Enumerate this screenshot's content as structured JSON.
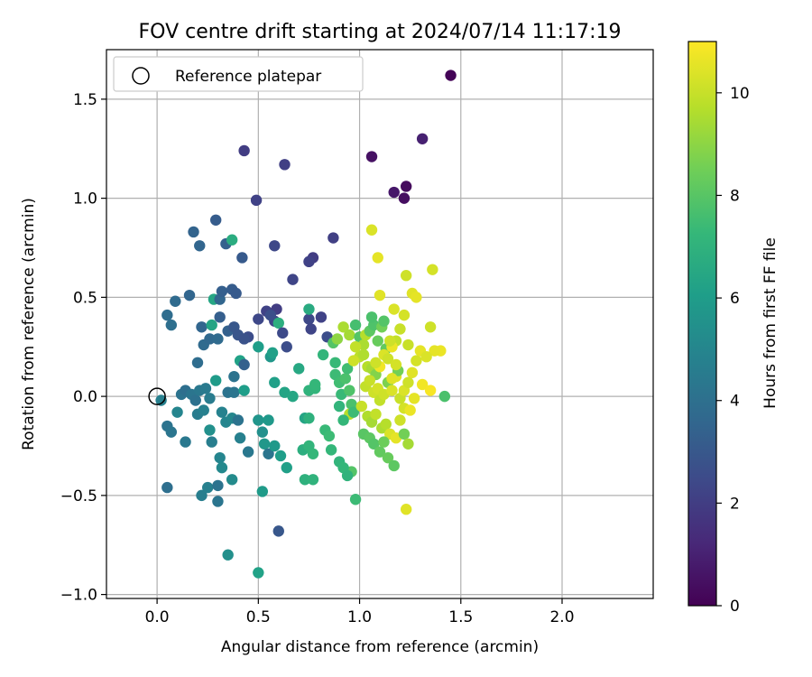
{
  "chart_data": {
    "type": "scatter",
    "title": "FOV centre drift starting at 2024/07/14 11:17:19",
    "xlabel": "Angular distance from reference (arcmin)",
    "ylabel": "Rotation from reference (arcmin)",
    "xlim": [
      -0.25,
      2.45
    ],
    "ylim": [
      -1.02,
      1.75
    ],
    "xticks": [
      0.0,
      0.5,
      1.0,
      1.5,
      2.0
    ],
    "xtick_labels": [
      "0.0",
      "0.5",
      "1.0",
      "1.5",
      "2.0"
    ],
    "yticks": [
      -1.0,
      -0.5,
      0.0,
      0.5,
      1.0,
      1.5
    ],
    "ytick_labels": [
      "−1.0",
      "−0.5",
      "0.0",
      "0.5",
      "1.0",
      "1.5"
    ],
    "grid": true,
    "legend": {
      "placement": "top-left",
      "entries": [
        "Reference platepar"
      ]
    },
    "reference_point": {
      "x": 0.0,
      "y": 0.0,
      "label": "Reference platepar"
    },
    "colorbar": {
      "label": "Hours from first FF file",
      "range": [
        0,
        11
      ],
      "ticks": [
        0,
        2,
        4,
        6,
        8,
        10
      ],
      "tick_labels": [
        "0",
        "2",
        "4",
        "6",
        "8",
        "10"
      ],
      "colormap": "viridis",
      "colors": [
        "#440154",
        "#482878",
        "#3e4989",
        "#31688e",
        "#26828e",
        "#1f9e89",
        "#35b779",
        "#6ece58",
        "#b5de2b",
        "#fde725"
      ]
    },
    "points": [
      [
        1.45,
        1.62,
        0.1
      ],
      [
        1.31,
        1.3,
        1.0
      ],
      [
        1.06,
        1.21,
        0.5
      ],
      [
        1.23,
        1.06,
        0.3
      ],
      [
        1.17,
        1.03,
        0.7
      ],
      [
        1.22,
        1.0,
        0.4
      ],
      [
        0.43,
        1.24,
        2.0
      ],
      [
        0.63,
        1.17,
        2.1
      ],
      [
        0.49,
        0.99,
        2.2
      ],
      [
        0.87,
        0.8,
        2.1
      ],
      [
        0.77,
        0.7,
        2.0
      ],
      [
        0.75,
        0.68,
        2.2
      ],
      [
        0.58,
        0.76,
        2.4
      ],
      [
        0.67,
        0.59,
        2.3
      ],
      [
        0.29,
        0.89,
        3.2
      ],
      [
        0.18,
        0.83,
        3.5
      ],
      [
        0.21,
        0.76,
        3.6
      ],
      [
        0.34,
        0.77,
        3.4
      ],
      [
        0.37,
        0.79,
        6.8
      ],
      [
        0.42,
        0.7,
        3.1
      ],
      [
        0.16,
        0.51,
        3.6
      ],
      [
        0.09,
        0.48,
        3.8
      ],
      [
        0.05,
        0.41,
        3.9
      ],
      [
        0.07,
        0.36,
        4.0
      ],
      [
        0.28,
        0.49,
        6.5
      ],
      [
        0.31,
        0.49,
        3.6
      ],
      [
        0.32,
        0.53,
        3.3
      ],
      [
        0.37,
        0.54,
        3.2
      ],
      [
        0.39,
        0.52,
        3.1
      ],
      [
        0.31,
        0.4,
        3.3
      ],
      [
        0.35,
        0.33,
        3.4
      ],
      [
        0.38,
        0.35,
        3.0
      ],
      [
        0.4,
        0.31,
        2.9
      ],
      [
        0.45,
        0.3,
        2.6
      ],
      [
        0.43,
        0.29,
        2.8
      ],
      [
        0.5,
        0.39,
        2.4
      ],
      [
        0.54,
        0.43,
        2.2
      ],
      [
        0.59,
        0.44,
        2.0
      ],
      [
        0.58,
        0.38,
        2.3
      ],
      [
        0.6,
        0.37,
        6.9
      ],
      [
        0.56,
        0.41,
        2.7
      ],
      [
        0.62,
        0.32,
        2.5
      ],
      [
        0.64,
        0.25,
        2.6
      ],
      [
        0.75,
        0.39,
        2.4
      ],
      [
        0.76,
        0.34,
        2.3
      ],
      [
        0.81,
        0.4,
        2.2
      ],
      [
        0.75,
        0.44,
        6.7
      ],
      [
        0.84,
        0.3,
        2.6
      ],
      [
        0.22,
        0.35,
        3.6
      ],
      [
        0.23,
        0.26,
        3.8
      ],
      [
        0.26,
        0.29,
        3.7
      ],
      [
        0.27,
        0.36,
        6.4
      ],
      [
        0.3,
        0.29,
        3.8
      ],
      [
        0.2,
        0.17,
        3.9
      ],
      [
        0.38,
        0.1,
        4.2
      ],
      [
        0.41,
        0.18,
        6.3
      ],
      [
        0.43,
        0.16,
        3.4
      ],
      [
        0.5,
        0.25,
        6.1
      ],
      [
        0.56,
        0.2,
        5.8
      ],
      [
        0.57,
        0.22,
        6.2
      ],
      [
        0.12,
        0.01,
        4.2
      ],
      [
        0.14,
        0.03,
        4.0
      ],
      [
        0.17,
        0.01,
        4.3
      ],
      [
        0.19,
        -0.02,
        4.1
      ],
      [
        0.21,
        0.03,
        4.4
      ],
      [
        0.24,
        0.04,
        4.5
      ],
      [
        0.26,
        -0.01,
        4.6
      ],
      [
        0.29,
        0.08,
        6.0
      ],
      [
        0.35,
        0.02,
        4.2
      ],
      [
        0.38,
        0.02,
        4.3
      ],
      [
        0.43,
        0.03,
        6.1
      ],
      [
        0.02,
        -0.02,
        4.8
      ],
      [
        0.1,
        -0.08,
        5.0
      ],
      [
        0.05,
        -0.15,
        4.2
      ],
      [
        0.07,
        -0.18,
        4.3
      ],
      [
        0.14,
        -0.23,
        4.4
      ],
      [
        0.2,
        -0.09,
        4.6
      ],
      [
        0.23,
        -0.07,
        4.8
      ],
      [
        0.26,
        -0.17,
        5.5
      ],
      [
        0.27,
        -0.23,
        4.7
      ],
      [
        0.32,
        -0.08,
        4.9
      ],
      [
        0.34,
        -0.13,
        5.0
      ],
      [
        0.37,
        -0.11,
        5.1
      ],
      [
        0.4,
        -0.12,
        4.2
      ],
      [
        0.41,
        -0.21,
        4.8
      ],
      [
        0.45,
        -0.28,
        4.4
      ],
      [
        0.5,
        -0.12,
        5.7
      ],
      [
        0.52,
        -0.18,
        5.5
      ],
      [
        0.53,
        -0.24,
        5.8
      ],
      [
        0.55,
        -0.29,
        4.3
      ],
      [
        0.58,
        -0.25,
        5.9
      ],
      [
        0.61,
        -0.3,
        6.1
      ],
      [
        0.64,
        -0.36,
        6.2
      ],
      [
        0.05,
        -0.46,
        4.0
      ],
      [
        0.22,
        -0.5,
        4.7
      ],
      [
        0.25,
        -0.46,
        4.8
      ],
      [
        0.3,
        -0.45,
        4.2
      ],
      [
        0.31,
        -0.31,
        5.0
      ],
      [
        0.32,
        -0.36,
        5.2
      ],
      [
        0.3,
        -0.53,
        4.3
      ],
      [
        0.37,
        -0.42,
        5.3
      ],
      [
        0.35,
        -0.8,
        5.5
      ],
      [
        0.52,
        -0.48,
        6.0
      ],
      [
        0.6,
        -0.68,
        3.0
      ],
      [
        0.5,
        -0.89,
        6.3
      ],
      [
        0.55,
        -0.12,
        5.9
      ],
      [
        0.58,
        0.07,
        6.2
      ],
      [
        0.63,
        0.02,
        6.4
      ],
      [
        0.67,
        0.0,
        6.5
      ],
      [
        0.7,
        0.14,
        6.6
      ],
      [
        0.73,
        -0.11,
        6.4
      ],
      [
        0.72,
        -0.27,
        6.9
      ],
      [
        0.73,
        -0.42,
        7.0
      ],
      [
        0.77,
        -0.42,
        7.1
      ],
      [
        0.75,
        -0.25,
        7.2
      ],
      [
        0.77,
        -0.29,
        7.3
      ],
      [
        0.75,
        0.03,
        7.1
      ],
      [
        0.78,
        0.04,
        7.2
      ],
      [
        0.78,
        0.06,
        7.3
      ],
      [
        0.75,
        -0.11,
        7.0
      ],
      [
        0.83,
        -0.17,
        7.4
      ],
      [
        0.85,
        -0.2,
        7.5
      ],
      [
        0.86,
        -0.27,
        7.3
      ],
      [
        0.82,
        0.21,
        7.2
      ],
      [
        0.87,
        0.27,
        8.0
      ],
      [
        0.89,
        0.29,
        9.1
      ],
      [
        0.88,
        0.17,
        7.4
      ],
      [
        0.88,
        0.11,
        7.5
      ],
      [
        0.9,
        0.07,
        7.6
      ],
      [
        0.91,
        0.01,
        7.4
      ],
      [
        0.93,
        0.09,
        7.8
      ],
      [
        0.94,
        0.14,
        7.6
      ],
      [
        0.95,
        0.03,
        7.9
      ],
      [
        0.96,
        -0.04,
        7.8
      ],
      [
        0.95,
        -0.09,
        9.8
      ],
      [
        0.97,
        -0.08,
        7.5
      ],
      [
        0.9,
        -0.05,
        7.2
      ],
      [
        0.92,
        -0.12,
        7.3
      ],
      [
        0.96,
        -0.38,
        8.0
      ],
      [
        0.98,
        -0.52,
        7.5
      ],
      [
        0.9,
        -0.33,
        7.2
      ],
      [
        0.92,
        -0.36,
        7.3
      ],
      [
        0.94,
        -0.4,
        7.1
      ],
      [
        0.92,
        0.35,
        9.6
      ],
      [
        0.95,
        0.31,
        9.5
      ],
      [
        0.98,
        0.36,
        7.7
      ],
      [
        1.0,
        0.3,
        8.0
      ],
      [
        1.02,
        0.26,
        9.6
      ],
      [
        1.03,
        0.31,
        9.8
      ],
      [
        1.05,
        0.33,
        8.2
      ],
      [
        1.07,
        0.36,
        7.9
      ],
      [
        1.06,
        0.4,
        7.8
      ],
      [
        1.09,
        0.28,
        8.4
      ],
      [
        1.11,
        0.35,
        8.6
      ],
      [
        1.12,
        0.38,
        8.0
      ],
      [
        1.13,
        0.24,
        8.3
      ],
      [
        1.0,
        0.2,
        9.9
      ],
      [
        1.02,
        0.21,
        9.7
      ],
      [
        1.04,
        0.15,
        9.8
      ],
      [
        1.06,
        0.14,
        9.5
      ],
      [
        1.08,
        0.11,
        8.9
      ],
      [
        1.03,
        0.05,
        10.0
      ],
      [
        1.05,
        0.08,
        10.1
      ],
      [
        1.07,
        0.02,
        10.2
      ],
      [
        1.09,
        0.04,
        10.3
      ],
      [
        1.1,
        -0.02,
        10.0
      ],
      [
        1.12,
        0.01,
        10.2
      ],
      [
        1.14,
        0.07,
        8.8
      ],
      [
        1.16,
        0.03,
        10.4
      ],
      [
        1.18,
        0.1,
        10.5
      ],
      [
        1.19,
        0.13,
        8.6
      ],
      [
        1.01,
        -0.05,
        10.1
      ],
      [
        1.04,
        -0.1,
        9.7
      ],
      [
        1.06,
        -0.13,
        9.5
      ],
      [
        1.08,
        -0.09,
        10.0
      ],
      [
        1.11,
        -0.16,
        9.6
      ],
      [
        1.13,
        -0.14,
        9.8
      ],
      [
        1.15,
        -0.19,
        10.4
      ],
      [
        1.18,
        -0.21,
        10.6
      ],
      [
        1.2,
        -0.12,
        10.2
      ],
      [
        1.02,
        -0.19,
        8.1
      ],
      [
        1.05,
        -0.21,
        8.2
      ],
      [
        1.07,
        -0.24,
        8.0
      ],
      [
        1.1,
        -0.28,
        8.3
      ],
      [
        1.12,
        -0.23,
        8.5
      ],
      [
        1.14,
        -0.31,
        8.4
      ],
      [
        1.17,
        -0.35,
        8.2
      ],
      [
        1.22,
        -0.19,
        8.6
      ],
      [
        1.24,
        -0.24,
        9.5
      ],
      [
        1.22,
        -0.06,
        10.3
      ],
      [
        1.25,
        -0.07,
        10.7
      ],
      [
        1.27,
        -0.01,
        10.6
      ],
      [
        1.2,
        -0.01,
        10.1
      ],
      [
        1.22,
        0.03,
        10.4
      ],
      [
        1.24,
        0.07,
        10.2
      ],
      [
        1.26,
        0.12,
        10.5
      ],
      [
        1.28,
        0.18,
        10.3
      ],
      [
        1.3,
        0.23,
        10.6
      ],
      [
        1.31,
        0.06,
        10.8
      ],
      [
        1.35,
        0.03,
        10.9
      ],
      [
        1.4,
        0.23,
        10.7
      ],
      [
        1.42,
        0.0,
        7.8
      ],
      [
        1.37,
        0.23,
        10.6
      ],
      [
        1.33,
        0.2,
        10.4
      ],
      [
        1.35,
        0.35,
        10.2
      ],
      [
        1.36,
        0.64,
        10.3
      ],
      [
        1.26,
        0.52,
        10.5
      ],
      [
        1.28,
        0.5,
        10.6
      ],
      [
        1.23,
        0.61,
        10.2
      ],
      [
        1.17,
        0.44,
        10.4
      ],
      [
        1.22,
        0.41,
        10.3
      ],
      [
        1.2,
        0.34,
        10.1
      ],
      [
        1.18,
        0.28,
        10.0
      ],
      [
        1.16,
        0.25,
        10.7
      ],
      [
        1.1,
        0.15,
        10.8
      ],
      [
        1.1,
        0.51,
        10.5
      ],
      [
        1.09,
        0.7,
        10.6
      ],
      [
        1.06,
        0.84,
        10.4
      ],
      [
        1.08,
        0.17,
        10.2
      ],
      [
        1.12,
        0.21,
        10.4
      ],
      [
        1.14,
        0.19,
        10.2
      ],
      [
        1.24,
        0.26,
        10.1
      ],
      [
        1.23,
        -0.57,
        10.5
      ],
      [
        1.15,
        0.28,
        10.2
      ],
      [
        1.18,
        0.16,
        10.3
      ],
      [
        1.16,
        0.09,
        10.5
      ],
      [
        0.98,
        0.25,
        10.0
      ],
      [
        0.97,
        0.18,
        10.2
      ]
    ]
  }
}
